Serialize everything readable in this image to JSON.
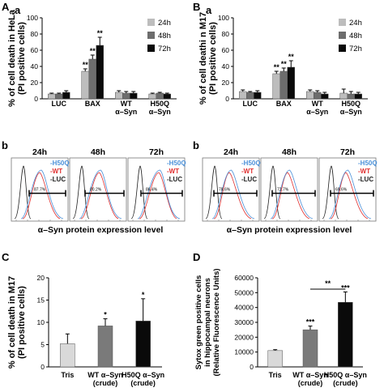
{
  "panels": {
    "A": {
      "letter": "A",
      "sub": "a"
    },
    "B": {
      "letter": "B",
      "sub": "a"
    },
    "b1": {
      "letter": "b"
    },
    "b2": {
      "letter": "b"
    },
    "C": {
      "letter": "C"
    },
    "D": {
      "letter": "D"
    }
  },
  "flow": {
    "time_labels": [
      "24h",
      "48h",
      "72h"
    ],
    "legend": [
      "-H50Q",
      "-WT",
      "-LUC"
    ],
    "xlabel": "α–Syn protein expression level",
    "left_pct": [
      "87.7%",
      "80.2%",
      "86.4%"
    ],
    "right_pct": [
      "78.6%",
      "72.7%",
      "69.6%"
    ],
    "colors": {
      "H50Q": "#4a90d9",
      "WT": "#e03030",
      "LUC": "#222222"
    }
  },
  "chart_data": [
    {
      "id": "A",
      "type": "bar",
      "ylabel": "% of cell death in HeLa\n(PI positive cells)",
      "ylabel_lines": [
        "% of cell death in HeLa",
        "(PI positive cells)"
      ],
      "categories": [
        "LUC",
        "BAX",
        "WT\nα–Syn",
        "H50Q\nα–Syn"
      ],
      "cat_lines": [
        [
          "LUC"
        ],
        [
          "BAX"
        ],
        [
          "WT",
          "α–Syn"
        ],
        [
          "H50Q",
          "α–Syn"
        ]
      ],
      "ylim": [
        0,
        100
      ],
      "yticks": [
        0,
        20,
        40,
        60,
        80,
        100
      ],
      "series": [
        {
          "name": "24h",
          "values": [
            6,
            34,
            8,
            6
          ],
          "err": [
            1,
            3,
            2,
            1
          ],
          "color": "#bdbdbd"
        },
        {
          "name": "48h",
          "values": [
            6,
            49,
            7,
            7
          ],
          "err": [
            1,
            5,
            2,
            1
          ],
          "color": "#6d6d6d"
        },
        {
          "name": "72h",
          "values": [
            8,
            66,
            7,
            6
          ],
          "err": [
            2,
            10,
            2,
            1
          ],
          "color": "#0a0a0a"
        }
      ],
      "annotations": [
        {
          "cat": 1,
          "series": 0,
          "text": "**"
        },
        {
          "cat": 1,
          "series": 1,
          "text": "**"
        },
        {
          "cat": 1,
          "series": 2,
          "text": "**"
        }
      ],
      "legend_position": "top-right"
    },
    {
      "id": "B",
      "type": "bar",
      "ylabel": "% of cell deathi n M17\n(PI positive cells)",
      "ylabel_lines": [
        "% of cell deathi n M17",
        "(PI positive cells)"
      ],
      "categories": [
        "LUC",
        "BAX",
        "WT\nα–Syn",
        "H50Q\nα–Syn"
      ],
      "cat_lines": [
        [
          "LUC"
        ],
        [
          "BAX"
        ],
        [
          "WT",
          "α–Syn"
        ],
        [
          "H50Q",
          "α–Syn"
        ]
      ],
      "ylim": [
        0,
        100
      ],
      "yticks": [
        0,
        20,
        40,
        60,
        80,
        100
      ],
      "series": [
        {
          "name": "24h",
          "values": [
            9,
            31,
            9,
            7
          ],
          "err": [
            2,
            3,
            2,
            5
          ],
          "color": "#bdbdbd"
        },
        {
          "name": "48h",
          "values": [
            8,
            34,
            8,
            6
          ],
          "err": [
            1,
            4,
            2,
            3
          ],
          "color": "#6d6d6d"
        },
        {
          "name": "72h",
          "values": [
            8,
            39,
            6,
            6
          ],
          "err": [
            2,
            8,
            2,
            2
          ],
          "color": "#0a0a0a"
        }
      ],
      "annotations": [
        {
          "cat": 1,
          "series": 0,
          "text": "**"
        },
        {
          "cat": 1,
          "series": 1,
          "text": "**"
        },
        {
          "cat": 1,
          "series": 2,
          "text": "**"
        }
      ],
      "legend_position": "top-right"
    },
    {
      "id": "C",
      "type": "bar",
      "ylabel": "% of cell death in M17\n(PI positive cells)",
      "ylabel_lines": [
        "% of cell death in M17",
        "(PI positive cells)"
      ],
      "categories": [
        "Tris",
        "WT α–Syn\n(crude)",
        "H50Q α–Syn\n(crude)"
      ],
      "cat_lines": [
        [
          "Tris"
        ],
        [
          "WT α–Syn",
          "(crude)"
        ],
        [
          "H50Q α–Syn",
          "(crude)"
        ]
      ],
      "ylim": [
        0,
        20
      ],
      "yticks": [
        0,
        5,
        10,
        15,
        20
      ],
      "series": [
        {
          "values": [
            5.2,
            9.2,
            10.3
          ],
          "err": [
            2.2,
            1.6,
            5.0
          ]
        }
      ],
      "bar_colors": [
        "#d9d9d9",
        "#7a7a7a",
        "#0a0a0a"
      ],
      "annotations": [
        {
          "cat": 1,
          "text": "*"
        },
        {
          "cat": 2,
          "text": "*"
        }
      ]
    },
    {
      "id": "D",
      "type": "bar",
      "ylabel": "Sytox green positive cells\nin hippocampal neurons\n(Relative Fluorescence Units)",
      "ylabel_lines": [
        "Sytox green positive cells",
        "in hippocampal neurons",
        "(Relative Fluorescence Units)"
      ],
      "categories": [
        "Tris",
        "WT α–Syn\n(crude)",
        "H50Q α–Syn\n(crude)"
      ],
      "cat_lines": [
        [
          "Tris"
        ],
        [
          "WT α–Syn",
          "(crude)"
        ],
        [
          "H50Q α–Syn",
          "(crude)"
        ]
      ],
      "ylim": [
        0,
        60000
      ],
      "yticks": [
        0,
        10000,
        20000,
        30000,
        40000,
        50000,
        60000
      ],
      "series": [
        {
          "values": [
            11000,
            25000,
            43500
          ],
          "err": [
            600,
            2500,
            7000
          ]
        }
      ],
      "bar_colors": [
        "#d9d9d9",
        "#7a7a7a",
        "#0a0a0a"
      ],
      "annotations": [
        {
          "cat": 1,
          "text": "***"
        },
        {
          "cat": 2,
          "text": "***"
        }
      ],
      "bracket": {
        "from": 1,
        "to": 2,
        "text": "**"
      }
    }
  ]
}
